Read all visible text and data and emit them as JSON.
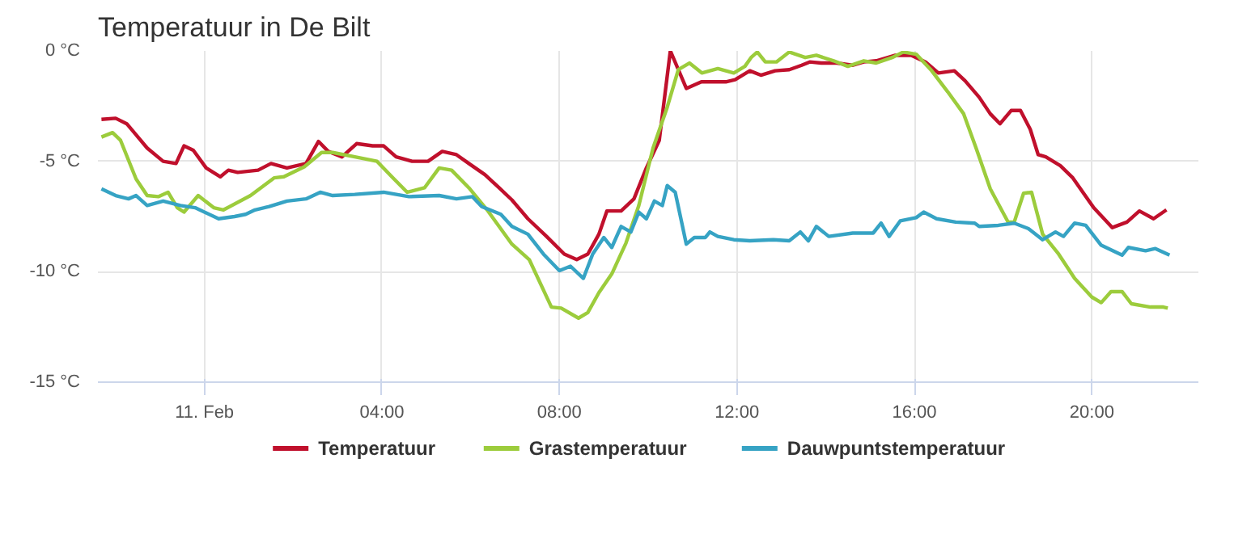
{
  "chart_data": {
    "type": "line",
    "title": "Temperatuur in De Bilt",
    "xlim": [
      -2.4,
      22.4
    ],
    "ylim": [
      -15,
      0
    ],
    "xticks": [
      {
        "value": 0,
        "label": "11. Feb"
      },
      {
        "value": 4,
        "label": "04:00"
      },
      {
        "value": 8,
        "label": "08:00"
      },
      {
        "value": 12,
        "label": "12:00"
      },
      {
        "value": 16,
        "label": "16:00"
      },
      {
        "value": 20,
        "label": "20:00"
      }
    ],
    "yticks": [
      {
        "value": -15,
        "label": "-15 °C"
      },
      {
        "value": -10,
        "label": "-10 °C"
      },
      {
        "value": -5,
        "label": "-5 °C"
      },
      {
        "value": 0,
        "label": "0 °C"
      }
    ],
    "grid": true,
    "legend": "bottom",
    "marker": "none",
    "line_style": "solid",
    "series": [
      {
        "name": "Temperatuur",
        "color": "#c0102c",
        "x": [
          -2.32,
          -2.0,
          -1.75,
          -1.54,
          -1.29,
          -0.93,
          -0.64,
          -0.46,
          -0.25,
          0.04,
          0.36,
          0.54,
          0.75,
          1.21,
          1.5,
          1.86,
          2.29,
          2.57,
          2.79,
          3.1,
          3.43,
          3.79,
          4.04,
          4.32,
          4.68,
          5.04,
          5.36,
          5.68,
          5.96,
          6.32,
          6.64,
          6.93,
          7.29,
          7.71,
          8.11,
          8.39,
          8.64,
          8.89,
          9.07,
          9.39,
          9.68,
          9.96,
          10.25,
          10.5,
          10.86,
          11.2,
          11.75,
          11.96,
          12.29,
          12.54,
          12.86,
          13.18,
          13.46,
          13.64,
          13.9,
          14.25,
          14.6,
          14.86,
          15.14,
          15.57,
          15.93,
          16.25,
          16.54,
          16.9,
          17.14,
          17.46,
          17.71,
          17.93,
          18.18,
          18.39,
          18.61,
          18.79,
          18.96,
          19.29,
          19.57,
          20.04,
          20.46,
          20.79,
          21.07,
          21.39,
          21.68
        ],
        "values": [
          -3.1,
          -3.05,
          -3.3,
          -3.8,
          -4.4,
          -5.0,
          -5.1,
          -4.3,
          -4.5,
          -5.3,
          -5.7,
          -5.4,
          -5.5,
          -5.4,
          -5.1,
          -5.3,
          -5.1,
          -4.1,
          -4.55,
          -4.8,
          -4.2,
          -4.3,
          -4.3,
          -4.8,
          -5.0,
          -5.0,
          -4.55,
          -4.7,
          -5.1,
          -5.6,
          -6.2,
          -6.75,
          -7.6,
          -8.4,
          -9.2,
          -9.45,
          -9.2,
          -8.3,
          -7.25,
          -7.25,
          -6.7,
          -5.3,
          -4.05,
          0,
          -1.7,
          -1.4,
          -1.4,
          -1.3,
          -0.9,
          -1.1,
          -0.9,
          -0.85,
          -0.65,
          -0.5,
          -0.55,
          -0.55,
          -0.65,
          -0.5,
          -0.45,
          -0.2,
          -0.2,
          -0.5,
          -1.0,
          -0.9,
          -1.35,
          -2.1,
          -2.85,
          -3.3,
          -2.7,
          -2.7,
          -3.55,
          -4.7,
          -4.8,
          -5.2,
          -5.75,
          -7.1,
          -8.0,
          -7.75,
          -7.25,
          -7.6,
          -7.2
        ]
      },
      {
        "name": "Grastemperatuur",
        "color": "#9ccc3c",
        "x": [
          -2.32,
          -2.07,
          -1.89,
          -1.54,
          -1.29,
          -1.04,
          -0.82,
          -0.61,
          -0.46,
          -0.14,
          0.21,
          0.43,
          1.04,
          1.57,
          1.79,
          2.25,
          2.64,
          2.89,
          3.39,
          3.89,
          4.25,
          4.57,
          4.96,
          5.29,
          5.57,
          5.96,
          6.39,
          6.93,
          7.32,
          7.82,
          8.04,
          8.43,
          8.64,
          8.89,
          9.18,
          9.5,
          9.79,
          10.11,
          10.43,
          10.68,
          10.93,
          11.21,
          11.57,
          11.93,
          12.18,
          12.32,
          12.46,
          12.64,
          12.89,
          13.18,
          13.54,
          13.79,
          14.18,
          14.5,
          14.86,
          15.14,
          15.5,
          15.75,
          16.04,
          16.39,
          16.75,
          17.11,
          17.39,
          17.71,
          18.11,
          18.25,
          18.46,
          18.64,
          18.89,
          19.25,
          19.61,
          20.0,
          20.21,
          20.43,
          20.68,
          20.89,
          21.32,
          21.61,
          21.71
        ],
        "values": [
          -3.9,
          -3.7,
          -4.05,
          -5.8,
          -6.55,
          -6.6,
          -6.4,
          -7.1,
          -7.3,
          -6.55,
          -7.1,
          -7.2,
          -6.55,
          -5.75,
          -5.7,
          -5.25,
          -4.6,
          -4.6,
          -4.8,
          -5.0,
          -5.75,
          -6.4,
          -6.2,
          -5.3,
          -5.4,
          -6.2,
          -7.25,
          -8.75,
          -9.45,
          -11.6,
          -11.65,
          -12.1,
          -11.85,
          -10.95,
          -10.1,
          -8.7,
          -7.0,
          -4.4,
          -2.55,
          -0.85,
          -0.55,
          -1.0,
          -0.8,
          -1.0,
          -0.7,
          -0.3,
          -0.05,
          -0.5,
          -0.5,
          -0.05,
          -0.3,
          -0.2,
          -0.45,
          -0.7,
          -0.45,
          -0.55,
          -0.3,
          -0.05,
          -0.15,
          -0.9,
          -1.85,
          -2.85,
          -4.4,
          -6.25,
          -7.75,
          -7.75,
          -6.45,
          -6.4,
          -8.3,
          -9.2,
          -10.3,
          -11.15,
          -11.4,
          -10.9,
          -10.9,
          -11.45,
          -11.6,
          -11.6,
          -11.65
        ]
      },
      {
        "name": "Dauwpuntstemperatuur",
        "color": "#36a3c4",
        "x": [
          -2.32,
          -2.0,
          -1.71,
          -1.54,
          -1.29,
          -0.93,
          -0.54,
          -0.21,
          0.32,
          0.68,
          0.93,
          1.14,
          1.46,
          1.86,
          2.29,
          2.61,
          2.89,
          3.39,
          4.04,
          4.61,
          5.29,
          5.68,
          6.04,
          6.25,
          6.68,
          6.93,
          7.29,
          7.64,
          8.0,
          8.25,
          8.54,
          8.75,
          9.0,
          9.18,
          9.39,
          9.61,
          9.79,
          9.96,
          10.14,
          10.32,
          10.43,
          10.61,
          10.86,
          11.04,
          11.29,
          11.39,
          11.57,
          11.93,
          12.29,
          12.82,
          13.18,
          13.43,
          13.61,
          13.79,
          14.07,
          14.61,
          15.07,
          15.25,
          15.43,
          15.68,
          16.04,
          16.21,
          16.5,
          16.93,
          17.36,
          17.46,
          17.89,
          18.25,
          18.57,
          18.89,
          19.18,
          19.36,
          19.61,
          19.86,
          20.21,
          20.68,
          20.82,
          21.21,
          21.43,
          21.75
        ],
        "values": [
          -6.25,
          -6.55,
          -6.7,
          -6.55,
          -7.0,
          -6.8,
          -7.0,
          -7.1,
          -7.6,
          -7.5,
          -7.4,
          -7.2,
          -7.05,
          -6.8,
          -6.7,
          -6.4,
          -6.55,
          -6.5,
          -6.4,
          -6.6,
          -6.55,
          -6.7,
          -6.6,
          -7.05,
          -7.4,
          -7.95,
          -8.3,
          -9.2,
          -9.95,
          -9.75,
          -10.3,
          -9.2,
          -8.45,
          -8.9,
          -7.95,
          -8.2,
          -7.3,
          -7.6,
          -6.8,
          -7.0,
          -6.1,
          -6.4,
          -8.75,
          -8.45,
          -8.45,
          -8.2,
          -8.4,
          -8.55,
          -8.6,
          -8.55,
          -8.6,
          -8.2,
          -8.6,
          -7.95,
          -8.4,
          -8.25,
          -8.25,
          -7.8,
          -8.4,
          -7.7,
          -7.55,
          -7.3,
          -7.6,
          -7.75,
          -7.8,
          -7.95,
          -7.9,
          -7.8,
          -8.05,
          -8.55,
          -8.2,
          -8.4,
          -7.8,
          -7.9,
          -8.8,
          -9.25,
          -8.9,
          -9.05,
          -8.95,
          -9.25
        ]
      }
    ]
  }
}
